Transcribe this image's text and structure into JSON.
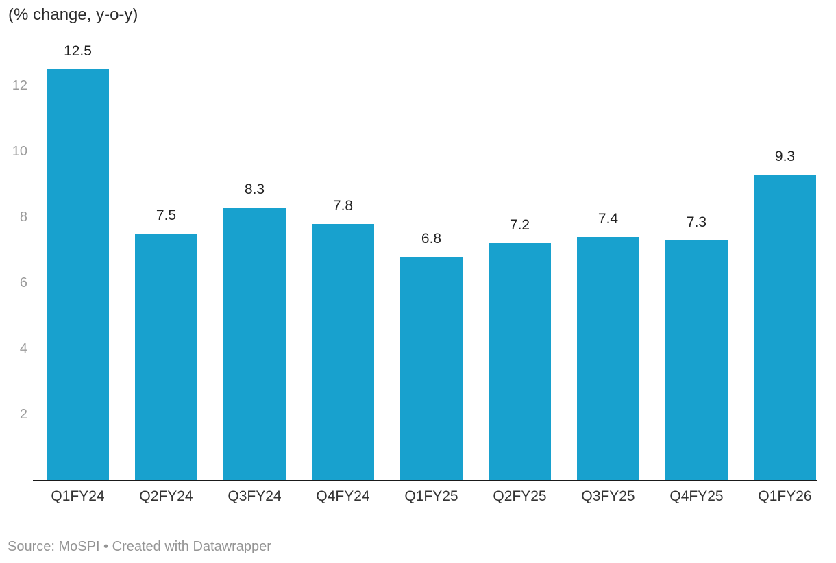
{
  "header": {
    "title": "(% change, y-o-y)"
  },
  "footer": {
    "text": "Source: MoSPI • Created with Datawrapper"
  },
  "colors": {
    "bar": "#18a1ce",
    "axis_line": "#1a1a1a",
    "tick_label": "#9b9b9b",
    "value_label": "#222222",
    "category_label": "#333333",
    "footer_text": "#949494",
    "background": "#ffffff"
  },
  "chart_data": {
    "type": "bar",
    "title": "(% change, y-o-y)",
    "categories": [
      "Q1FY24",
      "Q2FY24",
      "Q3FY24",
      "Q4FY24",
      "Q1FY25",
      "Q2FY25",
      "Q3FY25",
      "Q4FY25",
      "Q1FY26"
    ],
    "values": [
      12.5,
      7.5,
      8.3,
      7.8,
      6.8,
      7.2,
      7.4,
      7.3,
      9.3
    ],
    "value_labels_shown": true,
    "xlabel": "",
    "ylabel": "% change, y-o-y",
    "ylim": [
      0,
      13
    ],
    "yticks": [
      2,
      4,
      6,
      8,
      10,
      12
    ],
    "grid": false,
    "legend": "none",
    "source_note": "Source: MoSPI • Created with Datawrapper"
  }
}
